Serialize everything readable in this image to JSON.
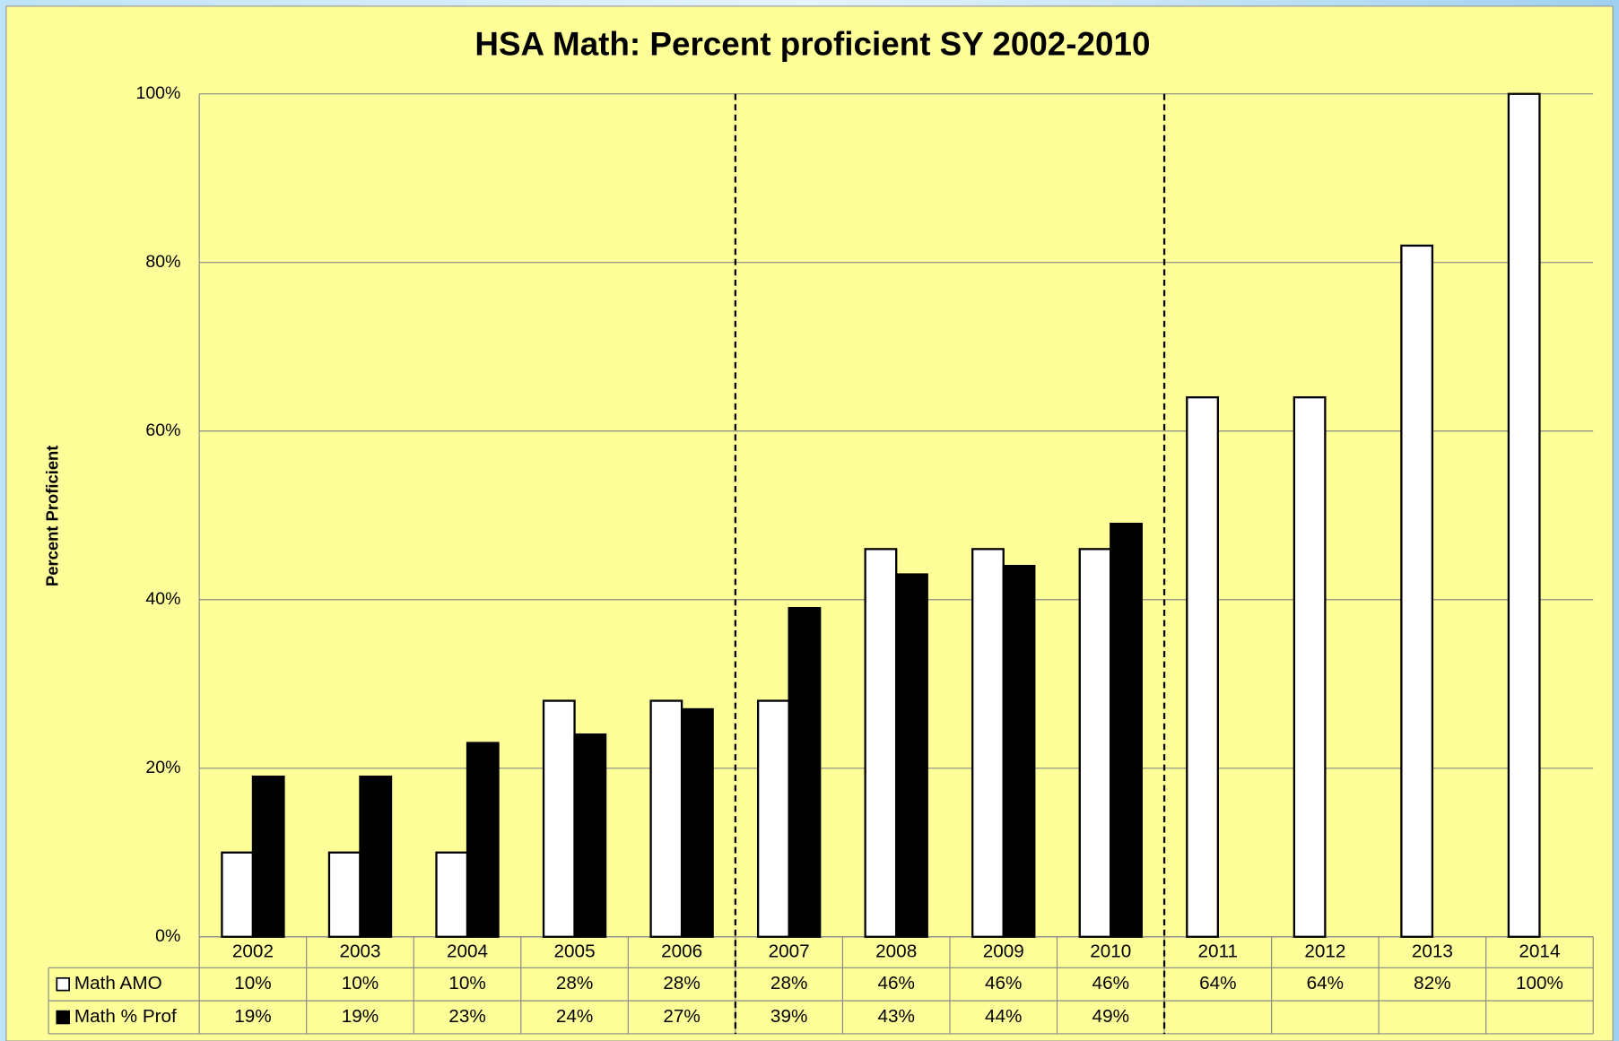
{
  "chart_data": {
    "type": "bar",
    "title": "HSA Math:  Percent proficient SY 2002-2010",
    "y_label": "Percent Proficient",
    "categories": [
      "2002",
      "2003",
      "2004",
      "2005",
      "2006",
      "2007",
      "2008",
      "2009",
      "2010",
      "2011",
      "2012",
      "2013",
      "2014"
    ],
    "series": [
      {
        "name": "Math AMO",
        "color": "#ffffff",
        "values": [
          10,
          10,
          10,
          28,
          28,
          28,
          46,
          46,
          46,
          64,
          64,
          82,
          100
        ],
        "value_labels": [
          "10%",
          "10%",
          "10%",
          "28%",
          "28%",
          "28%",
          "46%",
          "46%",
          "46%",
          "64%",
          "64%",
          "82%",
          "100%"
        ]
      },
      {
        "name": "Math % Prof",
        "color": "#000000",
        "values": [
          19,
          19,
          23,
          24,
          27,
          39,
          43,
          44,
          49,
          null,
          null,
          null,
          null
        ],
        "value_labels": [
          "19%",
          "19%",
          "23%",
          "24%",
          "27%",
          "39%",
          "43%",
          "44%",
          "49%",
          null,
          null,
          null,
          null
        ]
      }
    ],
    "ylim": [
      0,
      100
    ],
    "yticks": [
      {
        "value": 0,
        "label": "0%"
      },
      {
        "value": 20,
        "label": "20%"
      },
      {
        "value": 40,
        "label": "40%"
      },
      {
        "value": 60,
        "label": "60%"
      },
      {
        "value": 80,
        "label": "80%"
      },
      {
        "value": 100,
        "label": "100%"
      }
    ],
    "grid": true
  }
}
